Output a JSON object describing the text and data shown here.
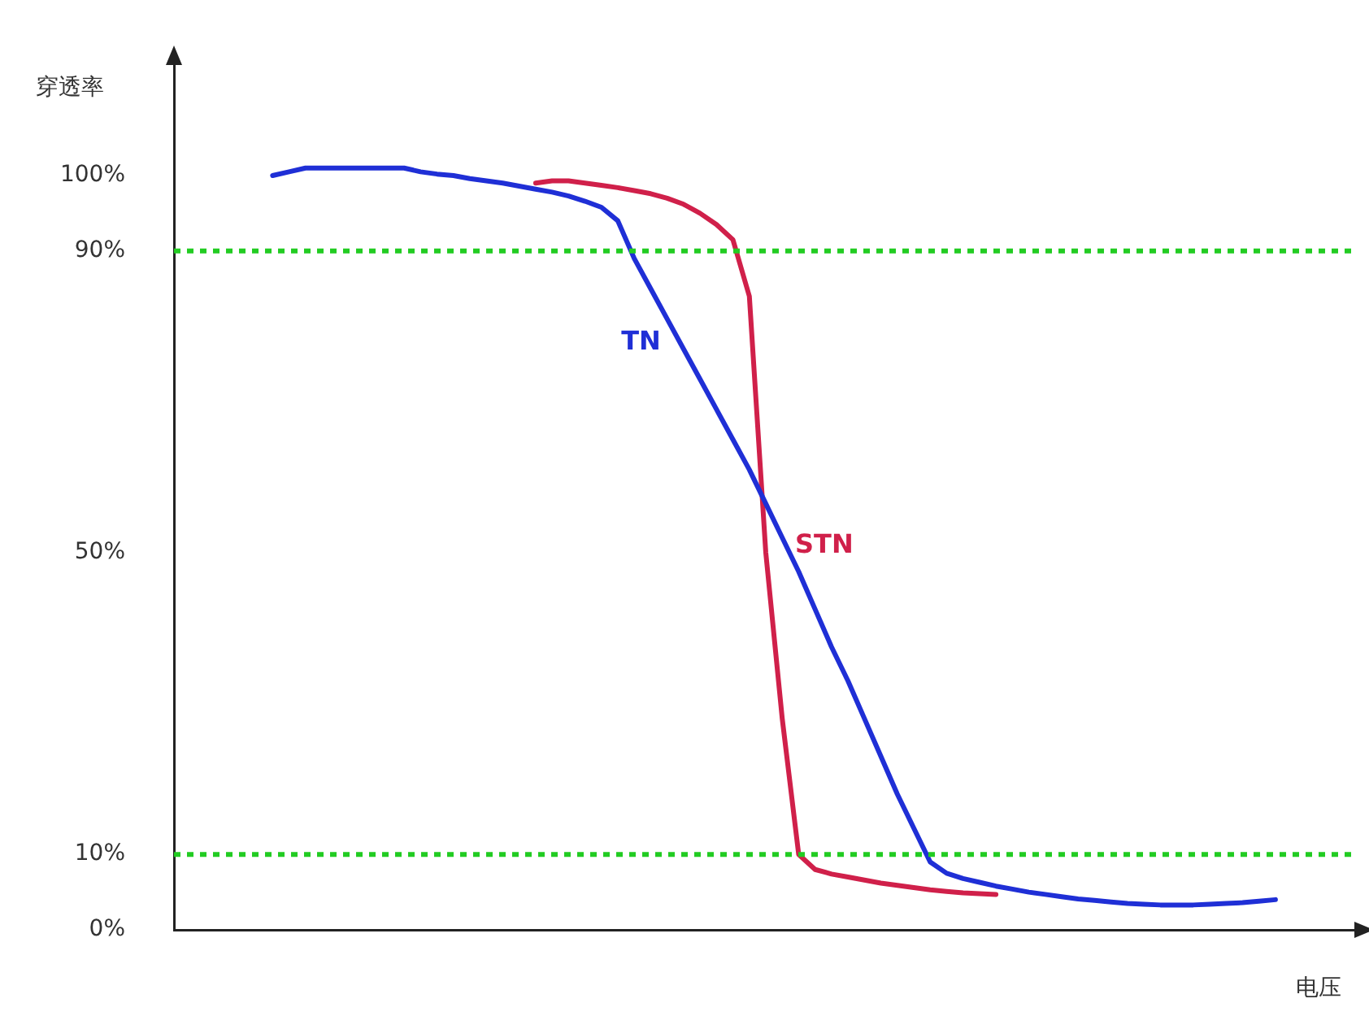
{
  "chart_data": {
    "type": "line",
    "xlabel": "电压",
    "ylabel": "穿透率",
    "categories": [
      null,
      null,
      null,
      null,
      null,
      null,
      null,
      null,
      null,
      null,
      null,
      null,
      null,
      null,
      null,
      null,
      null,
      null,
      null,
      null,
      null,
      null,
      null,
      null,
      null,
      null,
      null,
      null,
      null,
      null,
      null,
      null,
      null,
      null,
      null,
      null,
      null,
      null,
      null,
      null,
      null,
      null,
      null,
      null,
      null,
      null,
      null,
      null,
      null,
      null,
      null,
      null,
      null,
      null,
      null,
      null,
      null,
      null,
      null,
      null,
      null,
      null,
      null,
      null,
      null,
      null,
      null,
      null,
      null,
      null,
      null,
      null,
      null
    ],
    "series": [
      {
        "name": "TN",
        "color": "#1f2fd6",
        "values": [
          null,
          null,
          null,
          null,
          null,
          null,
          100,
          100.5,
          101,
          101,
          101,
          101,
          101,
          101,
          101,
          100.5,
          100.2,
          100,
          99.6,
          99.3,
          99,
          98.6,
          98.2,
          97.8,
          97.3,
          96.6,
          95.8,
          94,
          89,
          85,
          81,
          77,
          73,
          69,
          65,
          61,
          56.5,
          52,
          47.5,
          42.5,
          37.5,
          33,
          28,
          23,
          18,
          13.5,
          9,
          7.5,
          6.8,
          6.3,
          5.8,
          5.4,
          5,
          4.7,
          4.4,
          4.1,
          3.9,
          3.7,
          3.5,
          3.4,
          3.3,
          3.3,
          3.3,
          3.4,
          3.5,
          3.6,
          3.8,
          4,
          null,
          null,
          null,
          null,
          null
        ]
      },
      {
        "name": "STN",
        "color": "#d0204a",
        "values": [
          null,
          null,
          null,
          null,
          null,
          null,
          null,
          null,
          null,
          null,
          null,
          null,
          null,
          null,
          null,
          null,
          null,
          null,
          null,
          null,
          null,
          null,
          99,
          99.3,
          99.3,
          99,
          98.7,
          98.4,
          98,
          97.6,
          97,
          96.2,
          95,
          93.5,
          91.5,
          84,
          50,
          28,
          10,
          8,
          7.4,
          7,
          6.6,
          6.2,
          5.9,
          5.6,
          5.3,
          5.1,
          4.9,
          4.8,
          4.7,
          null,
          null,
          null,
          null,
          null,
          null,
          null,
          null,
          null,
          null,
          null,
          null,
          null,
          null,
          null,
          null,
          null,
          null,
          null,
          null,
          null,
          null
        ]
      }
    ],
    "ylim": [
      0,
      115
    ],
    "yticks": [
      {
        "value": 0,
        "label": "0%"
      },
      {
        "value": 10,
        "label": "10%"
      },
      {
        "value": 50,
        "label": "50%"
      },
      {
        "value": 90,
        "label": "90%"
      },
      {
        "value": 100,
        "label": "100%"
      }
    ],
    "ref_lines": [
      {
        "axis": "y",
        "value": 90,
        "color": "#22cc22",
        "line_style": "dotted"
      },
      {
        "axis": "y",
        "value": 10,
        "color": "#22cc22",
        "line_style": "dotted"
      }
    ],
    "grid": false,
    "legend": false,
    "marker": "none",
    "line_style": "solid",
    "tick_labels": "y"
  }
}
